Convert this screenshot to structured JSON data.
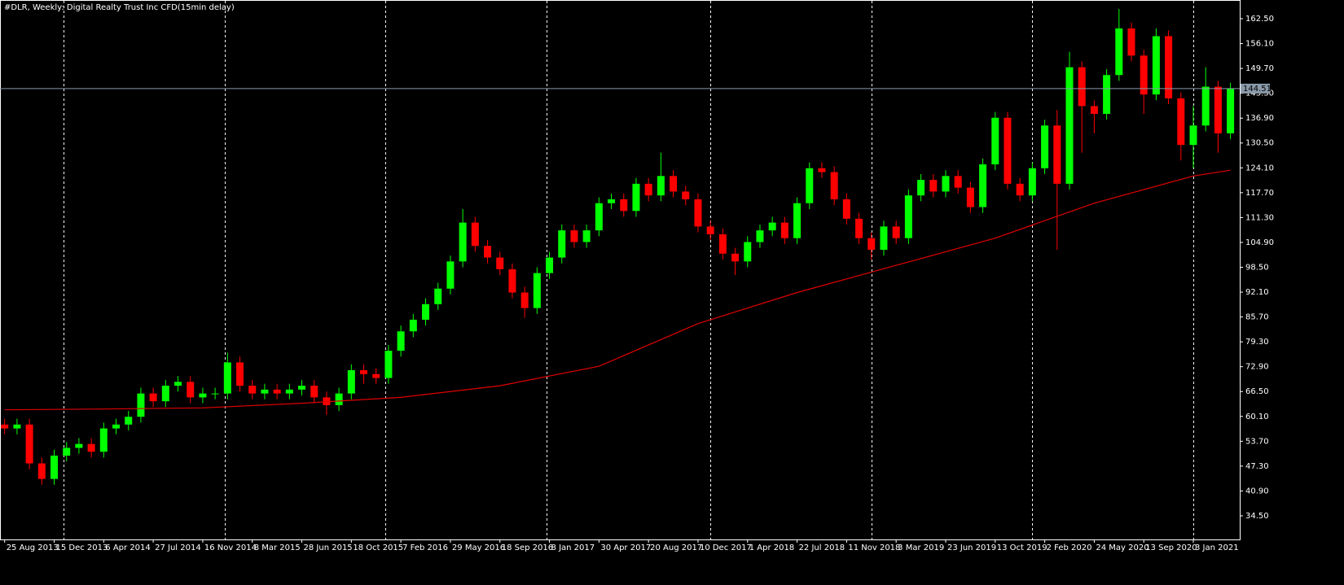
{
  "chart_data": {
    "type": "candlestick",
    "title": "#DLR, Weekly:  Digital Realty Trust Inc CFD(15min delay)",
    "x": [
      0,
      4,
      8,
      12,
      16,
      20,
      24,
      28,
      32,
      36,
      40,
      44,
      48,
      52,
      56,
      60,
      64,
      68,
      72,
      76,
      80,
      84,
      88,
      92,
      96,
      100,
      104,
      108,
      112,
      116,
      120,
      124,
      128,
      132,
      136,
      140,
      144,
      148,
      152,
      156,
      160,
      164,
      168,
      172,
      176,
      180,
      184,
      188,
      192,
      196,
      200,
      204,
      208,
      212,
      216,
      220,
      224,
      228,
      232,
      236,
      240,
      244,
      248,
      252,
      256,
      260,
      264,
      268,
      272,
      276,
      280,
      284,
      288,
      292,
      296,
      300,
      304,
      308,
      312,
      316,
      320,
      324,
      328,
      332,
      336,
      340,
      344,
      348,
      352,
      356,
      360,
      364,
      368,
      372,
      376,
      380,
      384,
      388,
      392,
      396
    ],
    "open": [
      58,
      57,
      58,
      48,
      44,
      50,
      52,
      53,
      51,
      57,
      58,
      60,
      66,
      64,
      68,
      69,
      65,
      66,
      66,
      74,
      68,
      66,
      67,
      66,
      67,
      68,
      65,
      63,
      66,
      72,
      71,
      70,
      77,
      82,
      85,
      89,
      93,
      100,
      110,
      104,
      101,
      98,
      92,
      88,
      97,
      101,
      108,
      105,
      108,
      115,
      116,
      113,
      120,
      117,
      122,
      118,
      116,
      109,
      107,
      102,
      100,
      105,
      108,
      110,
      106,
      115,
      124,
      123,
      116,
      111,
      106,
      103,
      109,
      106,
      117,
      121,
      118,
      122,
      119,
      114,
      125,
      137,
      120,
      117,
      124,
      135,
      120,
      150,
      140,
      138,
      148,
      160,
      153,
      143,
      158,
      142,
      130,
      135,
      145,
      133
    ],
    "high": [
      59.5,
      59.5,
      59.5,
      49.5,
      51.5,
      53.5,
      54.5,
      54.5,
      58.5,
      59.5,
      61.5,
      67.5,
      67.5,
      69.5,
      70.5,
      70.5,
      67.5,
      67.5,
      76.5,
      75.5,
      69.5,
      68.5,
      68.5,
      68.5,
      69.5,
      69.5,
      66.5,
      67.5,
      73.5,
      73.5,
      72.5,
      78.5,
      83.5,
      86.5,
      90.5,
      94.5,
      101.5,
      113.5,
      111.5,
      105.5,
      102.5,
      99.5,
      93.5,
      98.5,
      102.5,
      109.5,
      109.5,
      109.5,
      116.5,
      117.5,
      117.5,
      121.5,
      121.5,
      128,
      123.5,
      119.5,
      117.5,
      110.5,
      108.5,
      103.5,
      106.5,
      109.5,
      111.5,
      111.5,
      116.5,
      125.5,
      125.5,
      124.5,
      117.5,
      112.5,
      107.5,
      110.5,
      110.5,
      118.5,
      122.5,
      122.5,
      123.5,
      123.5,
      120.5,
      126.5,
      138.5,
      138.5,
      121.5,
      125.5,
      136.5,
      139,
      154,
      151.5,
      141.5,
      149.5,
      165,
      161.5,
      154.5,
      160,
      159.5,
      143.5,
      140,
      150,
      146.5,
      146
    ],
    "low": [
      55.5,
      55.5,
      46.5,
      42.5,
      42.5,
      48.5,
      50.5,
      49.5,
      49.5,
      55.5,
      56.5,
      58.5,
      62.5,
      62.5,
      66.5,
      63.5,
      63.5,
      64.5,
      64.5,
      66.5,
      64.5,
      64.5,
      64.5,
      64.5,
      65.5,
      63.5,
      60.5,
      61.5,
      64.5,
      68.5,
      68.5,
      68.5,
      75.5,
      80.5,
      83.5,
      87.5,
      91.5,
      98.5,
      102.5,
      99.5,
      96.5,
      90.5,
      85.5,
      86.5,
      95.5,
      99.5,
      103.5,
      103.5,
      106.5,
      113.5,
      111.5,
      111.5,
      115.5,
      115.5,
      116.5,
      114.5,
      107.5,
      105.5,
      100.5,
      96.5,
      98.5,
      103.5,
      106.5,
      104.5,
      104.5,
      113.5,
      121.5,
      114.5,
      109.5,
      104.5,
      100.5,
      101.5,
      104.5,
      104.5,
      115.5,
      116.5,
      116.5,
      117.5,
      112.5,
      112.5,
      123.5,
      118.5,
      115.5,
      115.5,
      122.5,
      103,
      118.5,
      128,
      133,
      136.5,
      146.5,
      151.5,
      138,
      141.5,
      140.5,
      126,
      124,
      133.5,
      128,
      131.5
    ],
    "close": [
      57,
      58,
      48,
      44,
      50,
      52,
      53,
      51,
      57,
      58,
      60,
      66,
      64,
      68,
      69,
      65,
      66,
      66,
      74,
      68,
      66,
      67,
      66,
      67,
      68,
      65,
      63,
      66,
      72,
      71,
      70,
      77,
      82,
      85,
      89,
      93,
      100,
      110,
      104,
      101,
      98,
      92,
      88,
      97,
      101,
      108,
      105,
      108,
      115,
      116,
      113,
      120,
      117,
      122,
      118,
      116,
      109,
      107,
      102,
      100,
      105,
      108,
      110,
      106,
      115,
      124,
      123,
      116,
      111,
      106,
      103,
      109,
      106,
      117,
      121,
      118,
      122,
      119,
      114,
      125,
      137,
      120,
      117,
      124,
      135,
      120,
      150,
      140,
      138,
      148,
      160,
      153,
      143,
      158,
      142,
      130,
      135,
      145,
      133,
      144.51
    ],
    "up_color": "#00ff00",
    "down_color": "#ff0000",
    "moving_average": {
      "color": "#e00000",
      "x": [
        0,
        32,
        64,
        96,
        128,
        160,
        192,
        224,
        256,
        288,
        320,
        352,
        384,
        396
      ],
      "values": [
        61.8,
        62,
        62.3,
        63.5,
        65,
        68,
        73,
        84,
        92,
        99,
        106,
        115,
        122,
        123.5
      ]
    },
    "current_price": 144.51,
    "separators": [
      19,
      71,
      123,
      175,
      228,
      280,
      332,
      384
    ],
    "xlim": [
      -1.5,
      399
    ],
    "ylim": [
      28.42,
      167.32
    ],
    "yticks": [
      {
        "value": 34.5,
        "label": "34.50"
      },
      {
        "value": 40.9,
        "label": "40.90"
      },
      {
        "value": 47.3,
        "label": "47.30"
      },
      {
        "value": 53.7,
        "label": "53.70"
      },
      {
        "value": 60.1,
        "label": "60.10"
      },
      {
        "value": 66.5,
        "label": "66.50"
      },
      {
        "value": 72.9,
        "label": "72.90"
      },
      {
        "value": 79.3,
        "label": "79.30"
      },
      {
        "value": 85.7,
        "label": "85.70"
      },
      {
        "value": 92.1,
        "label": "92.10"
      },
      {
        "value": 98.5,
        "label": "98.50"
      },
      {
        "value": 104.9,
        "label": "104.90"
      },
      {
        "value": 111.3,
        "label": "111.30"
      },
      {
        "value": 117.7,
        "label": "117.70"
      },
      {
        "value": 124.1,
        "label": "124.10"
      },
      {
        "value": 130.5,
        "label": "130.50"
      },
      {
        "value": 136.9,
        "label": "136.90"
      },
      {
        "value": 143.3,
        "label": "143.30"
      },
      {
        "value": 149.7,
        "label": "149.70"
      },
      {
        "value": 156.1,
        "label": "156.10"
      },
      {
        "value": 162.5,
        "label": "162.50"
      }
    ],
    "xticks": [
      {
        "value": 0,
        "label": "25 Aug 2013"
      },
      {
        "value": 16,
        "label": "15 Dec 2013"
      },
      {
        "value": 32,
        "label": "6 Apr 2014"
      },
      {
        "value": 48,
        "label": "27 Jul 2014"
      },
      {
        "value": 64,
        "label": "16 Nov 2014"
      },
      {
        "value": 80,
        "label": "8 Mar 2015"
      },
      {
        "value": 96,
        "label": "28 Jun 2015"
      },
      {
        "value": 112,
        "label": "18 Oct 2015"
      },
      {
        "value": 128,
        "label": "7 Feb 2016"
      },
      {
        "value": 144,
        "label": "29 May 2016"
      },
      {
        "value": 160,
        "label": "18 Sep 2016"
      },
      {
        "value": 176,
        "label": "8 Jan 2017"
      },
      {
        "value": 192,
        "label": "30 Apr 2017"
      },
      {
        "value": 208,
        "label": "20 Aug 2017"
      },
      {
        "value": 224,
        "label": "10 Dec 2017"
      },
      {
        "value": 240,
        "label": "1 Apr 2018"
      },
      {
        "value": 256,
        "label": "22 Jul 2018"
      },
      {
        "value": 272,
        "label": "11 Nov 2018"
      },
      {
        "value": 288,
        "label": "3 Mar 2019"
      },
      {
        "value": 304,
        "label": "23 Jun 2019"
      },
      {
        "value": 320,
        "label": "13 Oct 2019"
      },
      {
        "value": 336,
        "label": "2 Feb 2020"
      },
      {
        "value": 352,
        "label": "24 May 2020"
      },
      {
        "value": 368,
        "label": "13 Sep 2020"
      },
      {
        "value": 384,
        "label": "3 Jan 2021"
      }
    ],
    "grid": false
  }
}
